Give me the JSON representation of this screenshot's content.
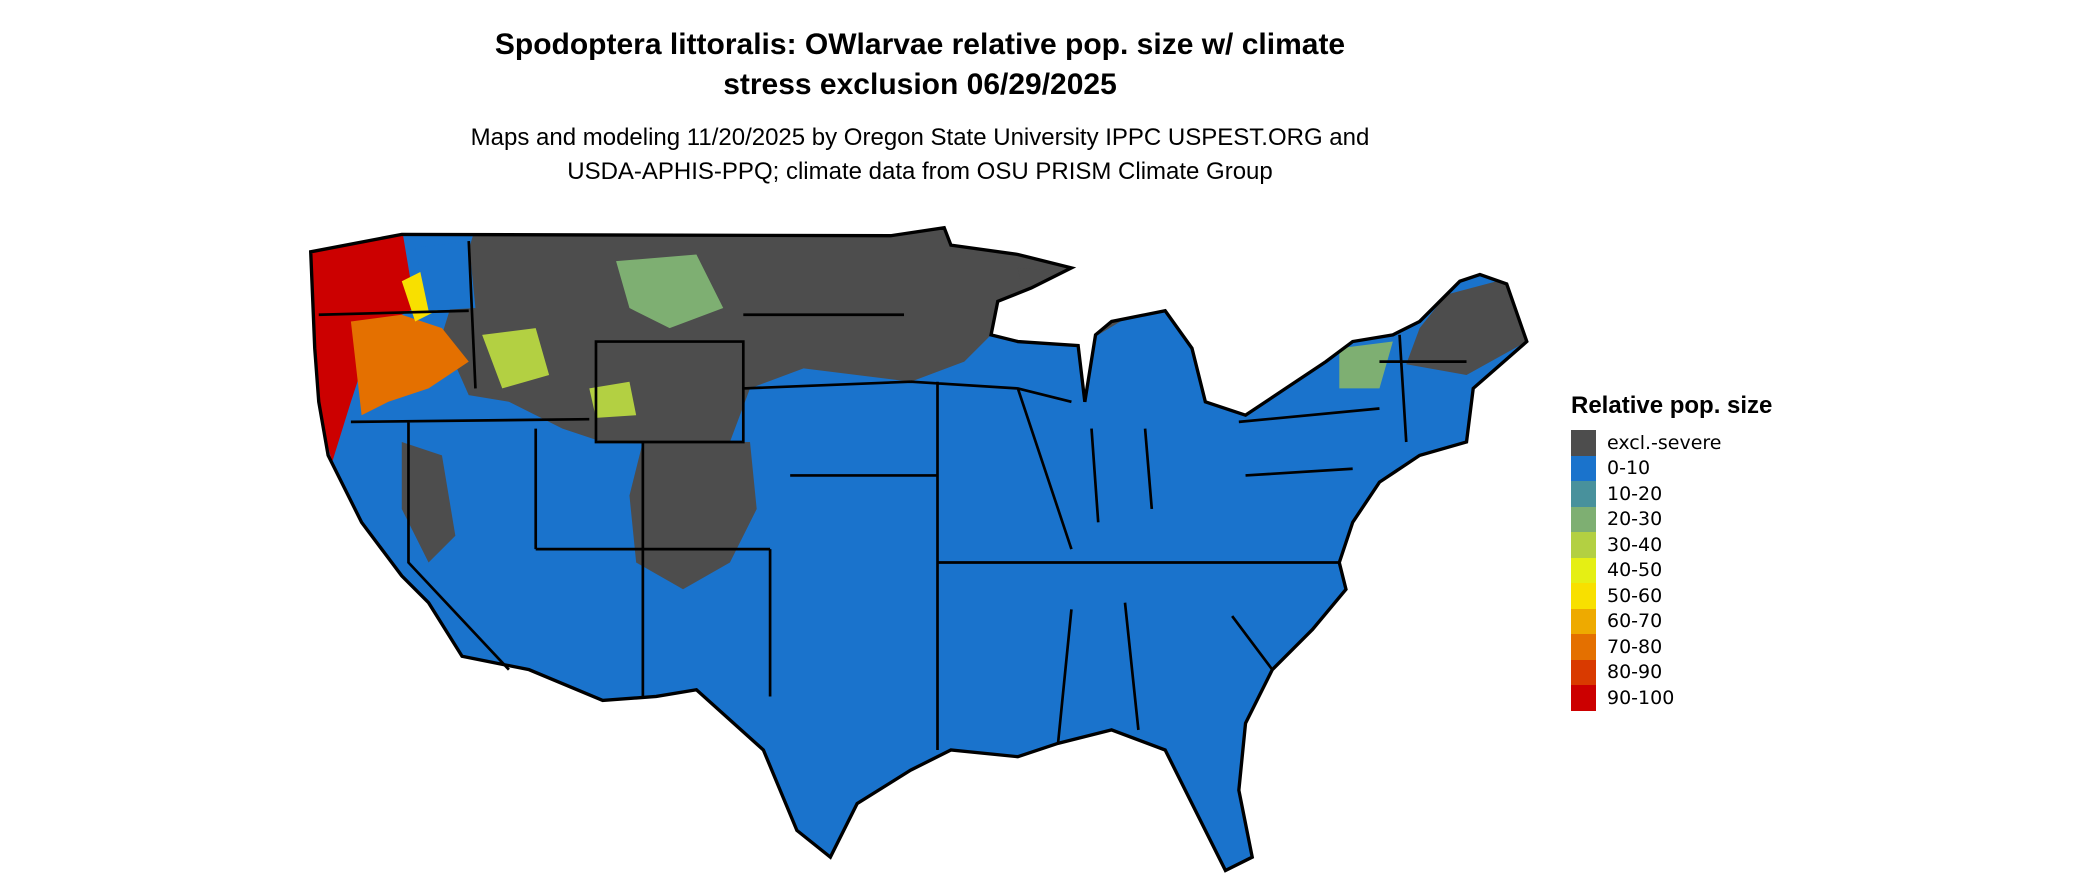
{
  "title_line1": "Spodoptera littoralis: OWlarvae relative pop. size w/ climate",
  "title_line2": "stress exclusion 06/29/2025",
  "subtitle_line1": "Maps and modeling 11/20/2025 by Oregon State University IPPC USPEST.ORG and",
  "subtitle_line2": "USDA-APHIS-PPQ; climate data from OSU PRISM Climate Group",
  "chart_data": {
    "type": "heatmap",
    "region": "Contiguous United States",
    "legend_title": "Relative pop. size",
    "legend_position": "right",
    "classes": [
      {
        "label": "excl.-severe",
        "color": "#4d4d4d"
      },
      {
        "label": "0-10",
        "color": "#1a73cc"
      },
      {
        "label": "10-20",
        "color": "#48919c"
      },
      {
        "label": "20-30",
        "color": "#7eaf72"
      },
      {
        "label": "30-40",
        "color": "#b3d042"
      },
      {
        "label": "40-50",
        "color": "#e5ef14"
      },
      {
        "label": "50-60",
        "color": "#f8e000"
      },
      {
        "label": "60-70",
        "color": "#eeaa00"
      },
      {
        "label": "70-80",
        "color": "#e47000"
      },
      {
        "label": "80-90",
        "color": "#d93a00"
      },
      {
        "label": "90-100",
        "color": "#cc0000"
      }
    ]
  }
}
